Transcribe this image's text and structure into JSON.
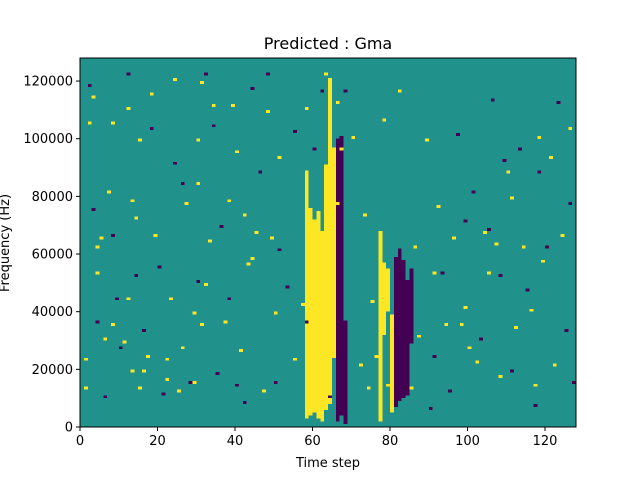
{
  "chart_data": {
    "type": "heatmap",
    "title": "Predicted : Gma",
    "xlabel": "Time step",
    "ylabel": "Frequency (Hz)",
    "xlim": [
      0,
      128
    ],
    "ylim": [
      0,
      128000
    ],
    "xticks": [
      0,
      20,
      40,
      60,
      80,
      100,
      120
    ],
    "yticks": [
      0,
      20000,
      40000,
      60000,
      80000,
      100000,
      120000
    ],
    "ytick_labels": [
      "0",
      "20000",
      "40000",
      "60000",
      "80000",
      "100000",
      "120000"
    ],
    "grid": false,
    "legend": "none",
    "rows": 128,
    "cols": 128,
    "bin_hz": 1000,
    "colors": {
      "background": "#21918c",
      "high": "#fde725",
      "low": "#440154"
    },
    "high_cells": [
      [
        1,
        13
      ],
      [
        1,
        23
      ],
      [
        2,
        105
      ],
      [
        3,
        114
      ],
      [
        4,
        53
      ],
      [
        4,
        62
      ],
      [
        5,
        65
      ],
      [
        6,
        30
      ],
      [
        7,
        81
      ],
      [
        8,
        35
      ],
      [
        8,
        105
      ],
      [
        11,
        29
      ],
      [
        12,
        44
      ],
      [
        12,
        110
      ],
      [
        13,
        19
      ],
      [
        13,
        78
      ],
      [
        14,
        72
      ],
      [
        15,
        13
      ],
      [
        15,
        99
      ],
      [
        16,
        19
      ],
      [
        17,
        24
      ],
      [
        18,
        115
      ],
      [
        19,
        66
      ],
      [
        22,
        16
      ],
      [
        22,
        23
      ],
      [
        23,
        44
      ],
      [
        24,
        120
      ],
      [
        25,
        12
      ],
      [
        26,
        27
      ],
      [
        27,
        77
      ],
      [
        29,
        15
      ],
      [
        29,
        39
      ],
      [
        30,
        84
      ],
      [
        30,
        99
      ],
      [
        31,
        119
      ],
      [
        31,
        35
      ],
      [
        32,
        49
      ],
      [
        33,
        64
      ],
      [
        34,
        111
      ],
      [
        37,
        36
      ],
      [
        38,
        78
      ],
      [
        39,
        111
      ],
      [
        40,
        95
      ],
      [
        41,
        26
      ],
      [
        42,
        73
      ],
      [
        43,
        56
      ],
      [
        44,
        58
      ],
      [
        45,
        67
      ],
      [
        47,
        12
      ],
      [
        48,
        109
      ],
      [
        49,
        65
      ],
      [
        50,
        39
      ],
      [
        51,
        93
      ],
      [
        55,
        23
      ],
      [
        57,
        42
      ],
      [
        58,
        110
      ],
      [
        61,
        45
      ],
      [
        63,
        122
      ],
      [
        64,
        27
      ],
      [
        66,
        112
      ],
      [
        66,
        77
      ],
      [
        67,
        96
      ],
      [
        70,
        100
      ],
      [
        72,
        21
      ],
      [
        73,
        73
      ],
      [
        74,
        13
      ],
      [
        75,
        43
      ],
      [
        76,
        24
      ],
      [
        78,
        106
      ],
      [
        79,
        14
      ],
      [
        82,
        116
      ],
      [
        85,
        13
      ],
      [
        86,
        62
      ],
      [
        87,
        31
      ],
      [
        89,
        99
      ],
      [
        91,
        53
      ],
      [
        92,
        76
      ],
      [
        94,
        35
      ],
      [
        96,
        65
      ],
      [
        98,
        35
      ],
      [
        99,
        41
      ],
      [
        100,
        27
      ],
      [
        101,
        81
      ],
      [
        102,
        22
      ],
      [
        104,
        67
      ],
      [
        105,
        53
      ],
      [
        107,
        63
      ],
      [
        108,
        17
      ],
      [
        110,
        88
      ],
      [
        111,
        79
      ],
      [
        112,
        34
      ],
      [
        114,
        62
      ],
      [
        116,
        40
      ],
      [
        117,
        14
      ],
      [
        118,
        100
      ],
      [
        119,
        57
      ],
      [
        121,
        93
      ],
      [
        122,
        21
      ],
      [
        124,
        66
      ],
      [
        126,
        103
      ]
    ],
    "low_cells": [
      [
        2,
        118
      ],
      [
        3,
        75
      ],
      [
        4,
        36
      ],
      [
        6,
        10
      ],
      [
        8,
        66
      ],
      [
        9,
        44
      ],
      [
        10,
        27
      ],
      [
        12,
        122
      ],
      [
        14,
        52
      ],
      [
        16,
        33
      ],
      [
        18,
        103
      ],
      [
        20,
        55
      ],
      [
        21,
        11
      ],
      [
        24,
        91
      ],
      [
        26,
        84
      ],
      [
        28,
        15
      ],
      [
        30,
        50
      ],
      [
        32,
        122
      ],
      [
        34,
        104
      ],
      [
        35,
        18
      ],
      [
        36,
        69
      ],
      [
        38,
        44
      ],
      [
        40,
        14
      ],
      [
        42,
        8
      ],
      [
        44,
        117
      ],
      [
        46,
        88
      ],
      [
        48,
        122
      ],
      [
        50,
        15
      ],
      [
        51,
        61
      ],
      [
        53,
        48
      ],
      [
        55,
        102
      ],
      [
        58,
        36
      ],
      [
        60,
        96
      ],
      [
        62,
        116
      ],
      [
        64,
        10
      ],
      [
        66,
        45
      ],
      [
        68,
        116
      ],
      [
        90,
        6
      ],
      [
        91,
        24
      ],
      [
        93,
        53
      ],
      [
        95,
        12
      ],
      [
        97,
        101
      ],
      [
        99,
        71
      ],
      [
        101,
        81
      ],
      [
        103,
        30
      ],
      [
        105,
        68
      ],
      [
        106,
        113
      ],
      [
        108,
        52
      ],
      [
        109,
        92
      ],
      [
        111,
        19
      ],
      [
        113,
        96
      ],
      [
        115,
        47
      ],
      [
        117,
        7
      ],
      [
        118,
        88
      ],
      [
        120,
        62
      ],
      [
        123,
        112
      ],
      [
        125,
        33
      ],
      [
        126,
        77
      ],
      [
        127,
        15
      ]
    ],
    "high_bands": [
      [
        58,
        3,
        88
      ],
      [
        59,
        4,
        75
      ],
      [
        60,
        5,
        71
      ],
      [
        61,
        3,
        74
      ],
      [
        62,
        2,
        67
      ],
      [
        63,
        6,
        90
      ],
      [
        64,
        8,
        120
      ],
      [
        65,
        24,
        96
      ],
      [
        66,
        3,
        75
      ],
      [
        77,
        2,
        67
      ],
      [
        78,
        32,
        56
      ],
      [
        79,
        40,
        54
      ],
      [
        80,
        5,
        38
      ]
    ],
    "low_bands": [
      [
        66,
        2,
        99
      ],
      [
        67,
        4,
        100
      ],
      [
        68,
        1,
        36
      ],
      [
        81,
        7,
        58
      ],
      [
        82,
        9,
        61
      ],
      [
        83,
        10,
        57
      ],
      [
        84,
        11,
        50
      ],
      [
        85,
        29,
        54
      ]
    ]
  }
}
